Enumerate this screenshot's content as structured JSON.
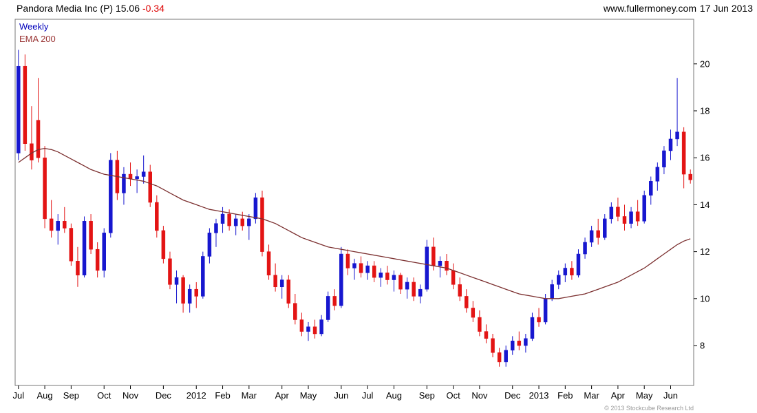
{
  "header": {
    "title": "Pandora Media Inc (P) 15.06",
    "change": "-0.34",
    "website": "www.fullermoney.com",
    "date": "17 Jun 2013"
  },
  "legend": {
    "timeframe": "Weekly",
    "overlay": "EMA 200"
  },
  "footer": {
    "copyright": "© 2013 Stockcube Research Ltd"
  },
  "colors": {
    "up": "#1717cf",
    "down": "#e31414",
    "ema": "#7b2f2f",
    "axis": "#777777",
    "tick_text": "#000000"
  },
  "chart_data": {
    "type": "candlestick",
    "title": "Pandora Media Inc (P)",
    "timeframe": "Weekly",
    "overlay": "EMA 200",
    "ylim": [
      6.3,
      21.9
    ],
    "y_ticks": [
      8,
      10,
      12,
      14,
      16,
      18,
      20
    ],
    "x_labels": [
      {
        "label": "Jul",
        "week": 0
      },
      {
        "label": "Aug",
        "week": 4
      },
      {
        "label": "Sep",
        "week": 8
      },
      {
        "label": "Oct",
        "week": 13
      },
      {
        "label": "Nov",
        "week": 17
      },
      {
        "label": "Dec",
        "week": 22
      },
      {
        "label": "2012",
        "week": 27
      },
      {
        "label": "Feb",
        "week": 31
      },
      {
        "label": "Mar",
        "week": 35
      },
      {
        "label": "Apr",
        "week": 40
      },
      {
        "label": "May",
        "week": 44
      },
      {
        "label": "Jun",
        "week": 49
      },
      {
        "label": "Jul",
        "week": 53
      },
      {
        "label": "Aug",
        "week": 57
      },
      {
        "label": "Sep",
        "week": 62
      },
      {
        "label": "Oct",
        "week": 66
      },
      {
        "label": "Nov",
        "week": 70
      },
      {
        "label": "Dec",
        "week": 75
      },
      {
        "label": "2013",
        "week": 79
      },
      {
        "label": "Feb",
        "week": 83
      },
      {
        "label": "Mar",
        "week": 87
      },
      {
        "label": "Apr",
        "week": 91
      },
      {
        "label": "May",
        "week": 95
      },
      {
        "label": "Jun",
        "week": 99
      }
    ],
    "weeks": [
      [
        16.2,
        20.6,
        15.9,
        19.9
      ],
      [
        19.9,
        20.4,
        16.3,
        16.6
      ],
      [
        16.6,
        18.2,
        15.5,
        15.9
      ],
      [
        17.6,
        19.4,
        15.8,
        16.0
      ],
      [
        16.0,
        16.5,
        13.0,
        13.4
      ],
      [
        13.4,
        14.2,
        12.6,
        12.9
      ],
      [
        12.9,
        13.6,
        12.3,
        13.3
      ],
      [
        13.3,
        13.9,
        12.8,
        13.0
      ],
      [
        13.0,
        13.2,
        11.4,
        11.6
      ],
      [
        11.6,
        12.2,
        10.5,
        11.0
      ],
      [
        11.0,
        13.5,
        10.9,
        13.3
      ],
      [
        13.3,
        13.6,
        11.9,
        12.1
      ],
      [
        12.1,
        12.4,
        10.9,
        11.2
      ],
      [
        11.2,
        13.0,
        10.9,
        12.8
      ],
      [
        12.8,
        16.2,
        12.6,
        15.9
      ],
      [
        15.9,
        16.3,
        14.2,
        14.5
      ],
      [
        14.5,
        15.6,
        14.0,
        15.3
      ],
      [
        15.3,
        15.8,
        14.8,
        15.1
      ],
      [
        15.1,
        15.5,
        14.5,
        15.2
      ],
      [
        15.2,
        16.1,
        14.9,
        15.4
      ],
      [
        15.4,
        15.7,
        13.9,
        14.1
      ],
      [
        14.1,
        14.4,
        12.6,
        12.9
      ],
      [
        12.9,
        13.1,
        11.5,
        11.7
      ],
      [
        11.7,
        12.0,
        10.4,
        10.6
      ],
      [
        10.6,
        11.2,
        9.8,
        10.9
      ],
      [
        10.9,
        11.0,
        9.4,
        9.8
      ],
      [
        9.8,
        10.6,
        9.4,
        10.4
      ],
      [
        10.4,
        10.7,
        9.6,
        10.1
      ],
      [
        10.1,
        12.0,
        10.0,
        11.8
      ],
      [
        11.8,
        13.0,
        11.5,
        12.8
      ],
      [
        12.8,
        13.4,
        12.2,
        13.2
      ],
      [
        13.2,
        13.9,
        12.8,
        13.6
      ],
      [
        13.6,
        13.8,
        12.9,
        13.1
      ],
      [
        13.1,
        13.6,
        12.7,
        13.4
      ],
      [
        13.4,
        13.7,
        12.9,
        13.1
      ],
      [
        13.1,
        13.6,
        12.5,
        13.4
      ],
      [
        13.4,
        14.5,
        13.2,
        14.3
      ],
      [
        14.3,
        14.6,
        11.8,
        12.0
      ],
      [
        12.0,
        12.3,
        10.8,
        11.0
      ],
      [
        11.0,
        11.5,
        10.3,
        10.5
      ],
      [
        10.5,
        11.0,
        10.0,
        10.8
      ],
      [
        10.8,
        11.0,
        9.6,
        9.8
      ],
      [
        9.8,
        10.2,
        8.9,
        9.1
      ],
      [
        9.1,
        9.4,
        8.4,
        8.6
      ],
      [
        8.6,
        9.0,
        8.2,
        8.8
      ],
      [
        8.8,
        9.1,
        8.3,
        8.5
      ],
      [
        8.5,
        9.3,
        8.4,
        9.1
      ],
      [
        9.1,
        10.3,
        9.0,
        10.1
      ],
      [
        10.1,
        10.4,
        9.5,
        9.7
      ],
      [
        9.7,
        12.2,
        9.6,
        11.9
      ],
      [
        11.9,
        12.1,
        11.0,
        11.3
      ],
      [
        11.3,
        11.7,
        10.8,
        11.5
      ],
      [
        11.5,
        11.8,
        10.9,
        11.1
      ],
      [
        11.1,
        11.6,
        10.8,
        11.4
      ],
      [
        11.4,
        11.6,
        10.7,
        10.9
      ],
      [
        10.9,
        11.3,
        10.5,
        11.1
      ],
      [
        11.1,
        11.4,
        10.6,
        10.8
      ],
      [
        10.8,
        11.2,
        10.3,
        11.0
      ],
      [
        11.0,
        11.1,
        10.2,
        10.4
      ],
      [
        10.4,
        10.9,
        10.0,
        10.7
      ],
      [
        10.7,
        10.9,
        9.9,
        10.1
      ],
      [
        10.1,
        10.6,
        9.8,
        10.4
      ],
      [
        10.4,
        12.5,
        10.3,
        12.2
      ],
      [
        12.2,
        12.6,
        11.2,
        11.4
      ],
      [
        11.4,
        11.8,
        10.9,
        11.6
      ],
      [
        11.6,
        11.9,
        11.0,
        11.2
      ],
      [
        11.2,
        11.5,
        10.4,
        10.6
      ],
      [
        10.6,
        10.9,
        9.9,
        10.1
      ],
      [
        10.1,
        10.4,
        9.4,
        9.6
      ],
      [
        9.6,
        9.9,
        9.0,
        9.2
      ],
      [
        9.2,
        9.5,
        8.4,
        8.6
      ],
      [
        8.6,
        8.9,
        8.1,
        8.3
      ],
      [
        8.3,
        8.5,
        7.5,
        7.7
      ],
      [
        7.7,
        7.9,
        7.1,
        7.3
      ],
      [
        7.3,
        8.0,
        7.1,
        7.8
      ],
      [
        7.8,
        8.4,
        7.6,
        8.2
      ],
      [
        8.2,
        8.6,
        7.8,
        8.0
      ],
      [
        8.0,
        8.5,
        7.7,
        8.3
      ],
      [
        8.3,
        9.4,
        8.2,
        9.2
      ],
      [
        9.2,
        9.6,
        8.8,
        9.0
      ],
      [
        9.0,
        10.2,
        8.9,
        10.0
      ],
      [
        10.0,
        10.8,
        9.9,
        10.6
      ],
      [
        10.6,
        11.2,
        10.4,
        11.0
      ],
      [
        11.0,
        11.5,
        10.7,
        11.3
      ],
      [
        11.3,
        11.6,
        10.8,
        11.0
      ],
      [
        11.0,
        12.1,
        10.9,
        11.9
      ],
      [
        11.9,
        12.6,
        11.7,
        12.4
      ],
      [
        12.4,
        13.1,
        12.2,
        12.9
      ],
      [
        12.9,
        13.4,
        12.3,
        12.6
      ],
      [
        12.6,
        13.6,
        12.5,
        13.4
      ],
      [
        13.4,
        14.1,
        13.2,
        13.9
      ],
      [
        13.9,
        14.3,
        13.3,
        13.5
      ],
      [
        13.5,
        14.0,
        12.9,
        13.2
      ],
      [
        13.2,
        13.9,
        13.0,
        13.7
      ],
      [
        13.7,
        14.2,
        13.1,
        13.3
      ],
      [
        13.3,
        14.6,
        13.2,
        14.4
      ],
      [
        14.4,
        15.2,
        14.0,
        15.0
      ],
      [
        15.0,
        15.8,
        14.6,
        15.6
      ],
      [
        15.6,
        16.5,
        15.3,
        16.3
      ],
      [
        16.3,
        17.2,
        15.9,
        16.8
      ],
      [
        16.8,
        19.4,
        16.5,
        17.1
      ],
      [
        17.1,
        17.3,
        14.7,
        15.3
      ],
      [
        15.3,
        15.5,
        14.9,
        15.06
      ]
    ],
    "ema200": [
      15.8,
      16.0,
      16.2,
      16.35,
      16.4,
      16.35,
      16.25,
      16.1,
      15.95,
      15.8,
      15.65,
      15.5,
      15.4,
      15.3,
      15.25,
      15.2,
      15.15,
      15.1,
      15.05,
      15.0,
      14.9,
      14.8,
      14.65,
      14.5,
      14.35,
      14.2,
      14.1,
      14.0,
      13.9,
      13.8,
      13.75,
      13.7,
      13.65,
      13.6,
      13.55,
      13.5,
      13.45,
      13.4,
      13.3,
      13.2,
      13.05,
      12.9,
      12.75,
      12.6,
      12.5,
      12.4,
      12.3,
      12.2,
      12.15,
      12.1,
      12.05,
      12.0,
      11.95,
      11.9,
      11.85,
      11.8,
      11.75,
      11.7,
      11.65,
      11.6,
      11.55,
      11.5,
      11.45,
      11.4,
      11.35,
      11.3,
      11.2,
      11.1,
      11.0,
      10.9,
      10.8,
      10.7,
      10.6,
      10.5,
      10.4,
      10.3,
      10.2,
      10.15,
      10.1,
      10.05,
      10.0,
      10.0,
      10.0,
      10.05,
      10.1,
      10.15,
      10.2,
      10.3,
      10.4,
      10.5,
      10.6,
      10.7,
      10.85,
      11.0,
      11.15,
      11.3,
      11.5,
      11.7,
      11.9,
      12.1,
      12.3,
      12.45,
      12.55
    ]
  }
}
